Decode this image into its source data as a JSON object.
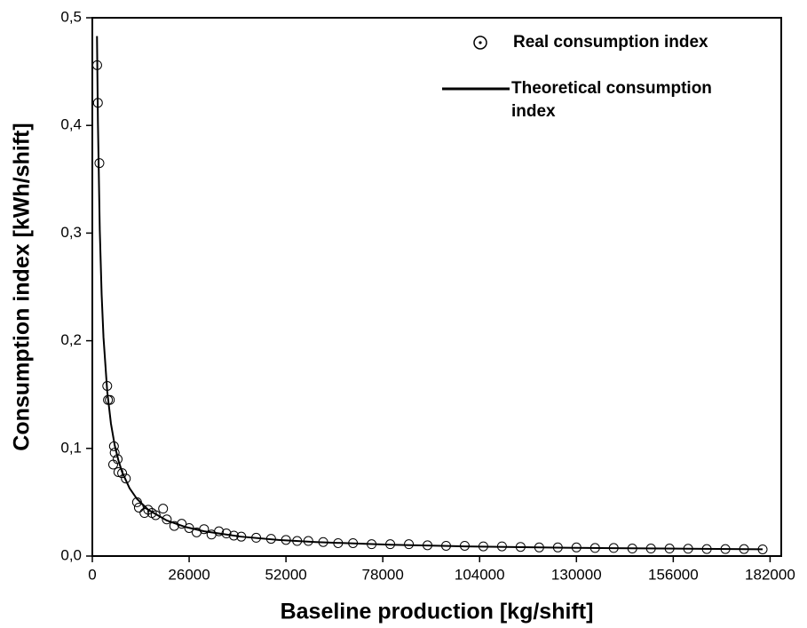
{
  "chart_data": {
    "type": "scatter",
    "x_label": "Baseline production [kg/shift]",
    "y_label": "Consumption index [kWh/shift]",
    "xlim": [
      0,
      185000
    ],
    "ylim": [
      0,
      0.5
    ],
    "xticks": [
      0,
      26000,
      52000,
      78000,
      104000,
      130000,
      156000,
      182000
    ],
    "yticks": [
      {
        "value": 0,
        "label": "0,0"
      },
      {
        "value": 0.1,
        "label": "0,1"
      },
      {
        "value": 0.2,
        "label": "0,2"
      },
      {
        "value": 0.3,
        "label": "0,3"
      },
      {
        "value": 0.4,
        "label": "0,4"
      },
      {
        "value": 0.5,
        "label": "0,5"
      }
    ],
    "legend": "upper right",
    "series": [
      {
        "name": "Real consumption index",
        "type": "scatter",
        "color": "#000000",
        "x": [
          1300,
          1500,
          1900,
          4000,
          4200,
          4700,
          5800,
          6000,
          5600,
          6800,
          7000,
          8000,
          9000,
          12000,
          12500,
          14000,
          15000,
          16000,
          17000,
          19000,
          20000,
          22000,
          24000,
          26000,
          28000,
          30000,
          32000,
          34000,
          36000,
          38000,
          40000,
          44000,
          48000,
          52000,
          55000,
          58000,
          62000,
          66000,
          70000,
          75000,
          80000,
          85000,
          90000,
          95000,
          100000,
          105000,
          110000,
          115000,
          120000,
          125000,
          130000,
          135000,
          140000,
          145000,
          150000,
          155000,
          160000,
          165000,
          170000,
          175000,
          180000
        ],
        "values": [
          0.456,
          0.421,
          0.365,
          0.158,
          0.145,
          0.145,
          0.102,
          0.096,
          0.085,
          0.09,
          0.078,
          0.077,
          0.072,
          0.05,
          0.045,
          0.04,
          0.043,
          0.04,
          0.038,
          0.044,
          0.034,
          0.028,
          0.03,
          0.026,
          0.022,
          0.025,
          0.02,
          0.023,
          0.021,
          0.019,
          0.018,
          0.017,
          0.016,
          0.015,
          0.014,
          0.014,
          0.013,
          0.012,
          0.012,
          0.011,
          0.011,
          0.011,
          0.01,
          0.0095,
          0.0095,
          0.009,
          0.009,
          0.0085,
          0.008,
          0.008,
          0.008,
          0.0075,
          0.0075,
          0.007,
          0.007,
          0.007,
          0.0068,
          0.0065,
          0.0065,
          0.0065,
          0.0062
        ]
      },
      {
        "name": "Theoretical consumption index",
        "type": "line",
        "color": "#000000",
        "x": [
          1250,
          1500,
          2000,
          2500,
          3000,
          4000,
          5000,
          6000,
          7000,
          8000,
          10000,
          12000,
          15000,
          20000,
          25000,
          30000,
          40000,
          50000,
          60000,
          80000,
          100000,
          120000,
          140000,
          160000,
          180000
        ],
        "values": [
          0.483,
          0.403,
          0.303,
          0.243,
          0.203,
          0.153,
          0.123,
          0.103,
          0.089,
          0.078,
          0.063,
          0.053,
          0.043,
          0.033,
          0.027,
          0.023,
          0.018,
          0.015,
          0.013,
          0.0105,
          0.009,
          0.008,
          0.0073,
          0.0068,
          0.0063
        ]
      }
    ]
  }
}
